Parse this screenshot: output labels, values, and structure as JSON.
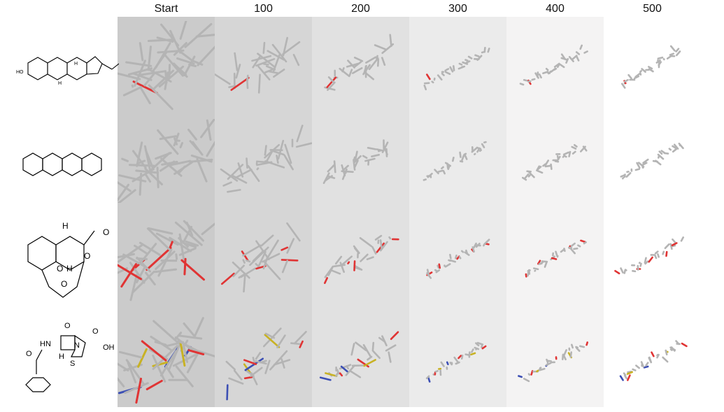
{
  "columns": [
    {
      "label": "Start",
      "bg": "#cbcbcb"
    },
    {
      "label": "100",
      "bg": "#d6d6d6"
    },
    {
      "label": "200",
      "bg": "#e1e1e1"
    },
    {
      "label": "300",
      "bg": "#ebebeb"
    },
    {
      "label": "400",
      "bg": "#f4f3f3"
    },
    {
      "label": "500",
      "bg": "#ffffff"
    }
  ],
  "rows": [
    {
      "molecule": "cholesterol",
      "atom_labels": [
        "HO",
        "H",
        "H"
      ]
    },
    {
      "molecule": "tetracene",
      "atom_labels": []
    },
    {
      "molecule": "artemether",
      "atom_labels": [
        "H",
        "O",
        "O",
        "O",
        "O",
        "H"
      ]
    },
    {
      "molecule": "penicillin-g",
      "atom_labels": [
        "HN",
        "O",
        "N",
        "S",
        "O",
        "OH",
        "O",
        "H"
      ]
    }
  ],
  "colors": {
    "carbon": "#b4b4b4",
    "oxygen": "#e03434",
    "nitrogen": "#3c4fb4",
    "sulfur": "#c8b224"
  }
}
